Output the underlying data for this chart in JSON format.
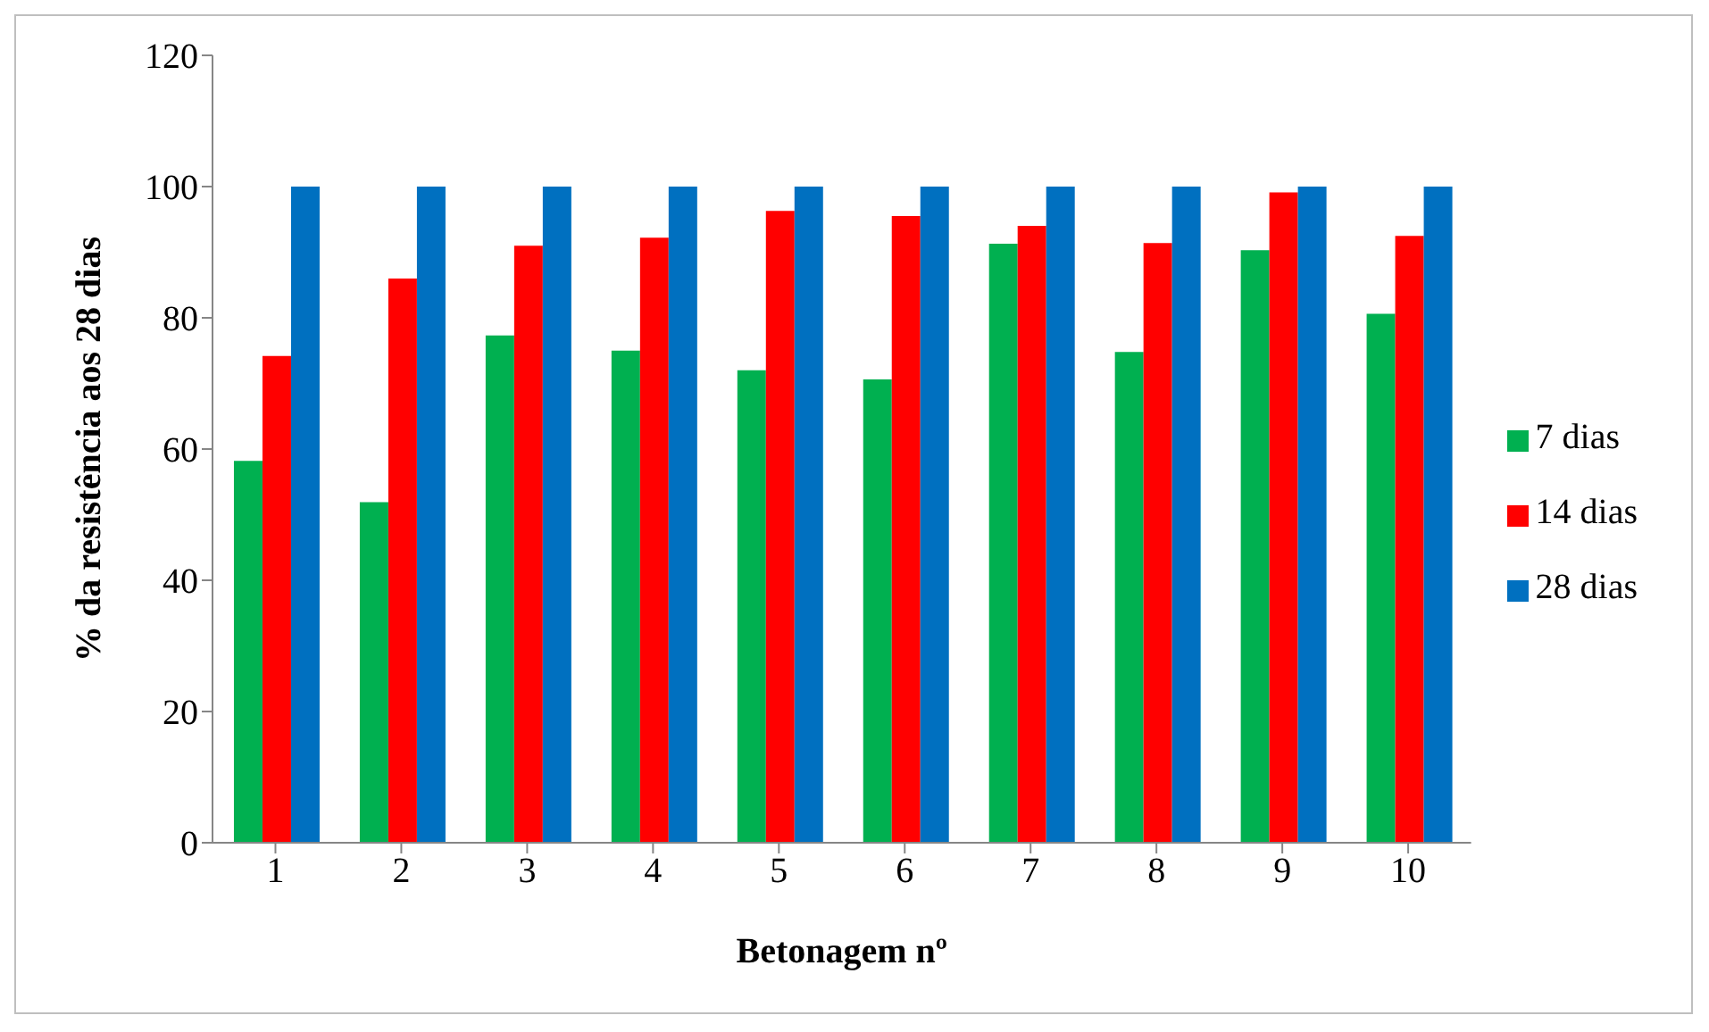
{
  "chart_data": {
    "type": "bar",
    "xlabel": "Betonagem nº",
    "ylabel": "% da resistência aos 28 dias",
    "categories": [
      "1",
      "2",
      "3",
      "4",
      "5",
      "6",
      "7",
      "8",
      "9",
      "10"
    ],
    "series": [
      {
        "name": "7 dias",
        "color": "#00b050",
        "values": [
          58.2,
          51.9,
          77.3,
          75.0,
          72.0,
          70.6,
          91.3,
          74.8,
          90.3,
          80.6
        ]
      },
      {
        "name": "14 dias",
        "color": "#ff0000",
        "values": [
          74.2,
          86.0,
          91.0,
          92.2,
          96.3,
          95.5,
          94.0,
          91.4,
          99.1,
          92.5
        ]
      },
      {
        "name": "28 dias",
        "color": "#0070c0",
        "values": [
          100,
          100,
          100,
          100,
          100,
          100,
          100,
          100,
          100,
          100
        ]
      }
    ],
    "ylim": [
      0,
      120
    ],
    "yticks": [
      0,
      20,
      40,
      60,
      80,
      100,
      120
    ],
    "grid": false,
    "legend": "right"
  }
}
